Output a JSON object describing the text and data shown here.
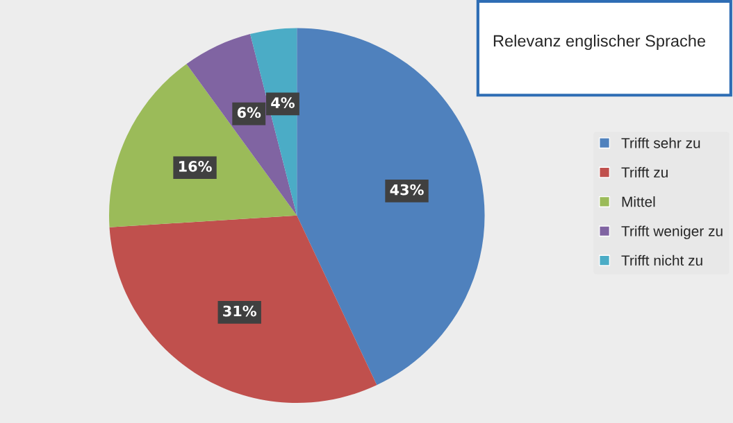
{
  "chart_data": {
    "type": "pie",
    "title": "Relevanz englischer Sprache",
    "categories": [
      "Trifft sehr zu",
      "Trifft zu",
      "Mittel",
      "Trifft weniger zu",
      "Trifft nicht zu"
    ],
    "values": [
      43,
      31,
      16,
      6,
      4
    ],
    "colors": [
      "#4f81bd",
      "#c0504d",
      "#9bbb59",
      "#8064a2",
      "#4bacc6"
    ],
    "value_labels": [
      "43%",
      "31%",
      "16%",
      "6%",
      "4%"
    ],
    "legend": "right"
  }
}
